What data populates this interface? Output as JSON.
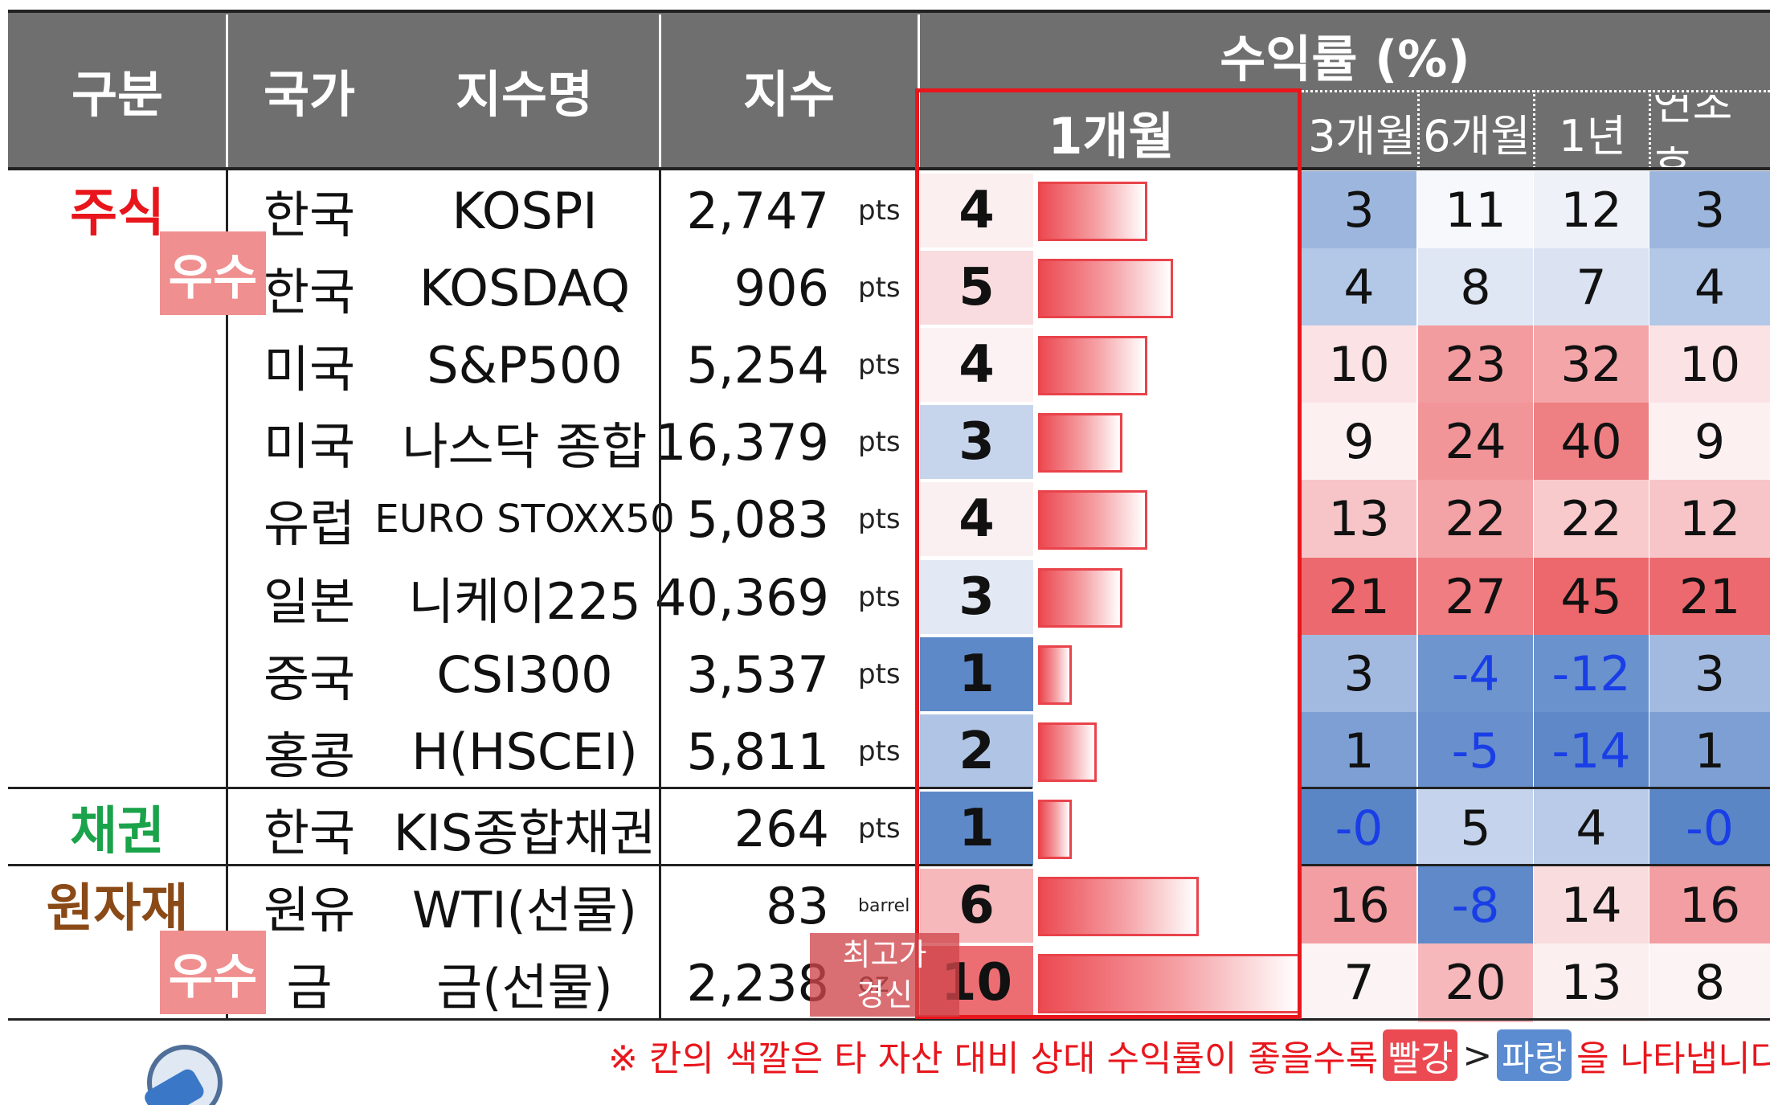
{
  "header": {
    "col_category": "구분",
    "col_country": "국가",
    "col_index_name": "지수명",
    "col_index": "지수",
    "col_returns": "수익률 (%)",
    "col_1m": "1개월",
    "col_3m": "3개월",
    "col_6m": "6개월",
    "col_1y": "1년",
    "col_ytd": "연초 후"
  },
  "categories": [
    {
      "label": "주식",
      "color": "#e8161c"
    },
    {
      "label": "채권",
      "color": "#1aa34a"
    },
    {
      "label": "원자재",
      "color": "#8a4a17"
    }
  ],
  "badges": {
    "stock": "우수",
    "commodity": "우수"
  },
  "rows": [
    {
      "country": "한국",
      "name": "KOSPI",
      "index": "2,747",
      "unit": "pts",
      "m1": "4",
      "m1_val": 4,
      "m1_bg": "#fbeff0",
      "m3": "3",
      "m3_bg": "#9db6de",
      "m6": "11",
      "m6_bg": "#f7f8fc",
      "y1": "12",
      "y1_bg": "#eef1f8",
      "ytd": "3",
      "ytd_bg": "#9db6de"
    },
    {
      "country": "한국",
      "name": "KOSDAQ",
      "index": "906",
      "unit": "pts",
      "m1": "5",
      "m1_val": 5,
      "m1_bg": "#f9dcdf",
      "m3": "4",
      "m3_bg": "#b3c7e6",
      "m6": "8",
      "m6_bg": "#dfe6f4",
      "y1": "7",
      "y1_bg": "#dbe3f3",
      "ytd": "4",
      "ytd_bg": "#b3c7e6"
    },
    {
      "country": "미국",
      "name": "S&P500",
      "index": "5,254",
      "unit": "pts",
      "m1": "4",
      "m1_val": 4,
      "m1_bg": "#fcf2f3",
      "m3": "10",
      "m3_bg": "#fbe3e5",
      "m6": "23",
      "m6_bg": "#f39c9f",
      "y1": "32",
      "y1_bg": "#f4a5a8",
      "ytd": "10",
      "ytd_bg": "#fbe3e5"
    },
    {
      "country": "미국",
      "name": "나스닥 종합",
      "index": "16,379",
      "unit": "pts",
      "m1": "3",
      "m1_val": 3,
      "m1_bg": "#c6d5ec",
      "m3": "9",
      "m3_bg": "#fcf0f1",
      "m6": "24",
      "m6_bg": "#f29599",
      "y1": "40",
      "y1_bg": "#ee7f83",
      "ytd": "9",
      "ytd_bg": "#fcf0f1"
    },
    {
      "country": "유럽",
      "name": "EURO STOXX50",
      "index": "5,083",
      "unit": "pts",
      "m1": "4",
      "m1_val": 4,
      "m1_bg": "#fbf0f1",
      "m3": "13",
      "m3_bg": "#f7c5c8",
      "m6": "22",
      "m6_bg": "#f3a2a5",
      "y1": "22",
      "y1_bg": "#f8cacc",
      "ytd": "12",
      "ytd_bg": "#f7c5c8"
    },
    {
      "country": "일본",
      "name": "니케이225",
      "index": "40,369",
      "unit": "pts",
      "m1": "3",
      "m1_val": 3,
      "m1_bg": "#e2e9f5",
      "m3": "21",
      "m3_bg": "#ec6a6f",
      "m6": "27",
      "m6_bg": "#ef7d81",
      "y1": "45",
      "y1_bg": "#ec686d",
      "ytd": "21",
      "ytd_bg": "#ec6a6f"
    },
    {
      "country": "중국",
      "name": "CSI300",
      "index": "3,537",
      "unit": "pts",
      "m1": "1",
      "m1_val": 1,
      "m1_bg": "#5e89c8",
      "m3": "3",
      "m3_bg": "#a2badf",
      "m6": "-4",
      "m6_bg": "#6f95cf",
      "y1": "-12",
      "y1_bg": "#6a92cd",
      "ytd": "3",
      "ytd_bg": "#a2badf"
    },
    {
      "country": "홍콩",
      "name": "H(HSCEI)",
      "index": "5,811",
      "unit": "pts",
      "m1": "2",
      "m1_val": 2,
      "m1_bg": "#b0c5e5",
      "m3": "1",
      "m3_bg": "#7d9fd3",
      "m6": "-5",
      "m6_bg": "#6990cc",
      "y1": "-14",
      "y1_bg": "#5e88c8",
      "ytd": "1",
      "ytd_bg": "#7d9fd3"
    },
    {
      "country": "한국",
      "name": "KIS종합채권",
      "index": "264",
      "unit": "pts",
      "m1": "1",
      "m1_val": 1,
      "m1_bg": "#5e89c8",
      "m3": "-0",
      "m3_bg": "#5a86c6",
      "m6": "5",
      "m6_bg": "#c5d4ec",
      "y1": "4",
      "y1_bg": "#b9cbe8",
      "ytd": "-0",
      "ytd_bg": "#5a86c6"
    },
    {
      "country": "원유",
      "name": "WTI(선물)",
      "index": "83",
      "unit": "barrel",
      "m1": "6",
      "m1_val": 6,
      "m1_bg": "#f6b8bb",
      "m3": "16",
      "m3_bg": "#f39ea2",
      "m6": "-8",
      "m6_bg": "#5f89c8",
      "y1": "14",
      "y1_bg": "#f9dcdd",
      "ytd": "16",
      "ytd_bg": "#f39ea2"
    },
    {
      "country": "금",
      "name": "금(선물)",
      "index": "2,238",
      "unit": "oz",
      "m1": "10",
      "m1_val": 10,
      "m1_bg": "#ec6e73",
      "m3": "7",
      "m3_bg": "#fbf3f4",
      "m6": "20",
      "m6_bg": "#f6b8bb",
      "y1": "13",
      "y1_bg": "#fbeff0",
      "ytd": "8",
      "ytd_bg": "#fbf3f4"
    }
  ],
  "highlight_badge": {
    "line1": "최고가",
    "line2": "경신"
  },
  "footnote": {
    "prefix": "※ 칸의 색깔은 타 자산 대비 상대 수익률이 좋을수록",
    "red_label": "빨강",
    "gt": ">",
    "blue_label": "파랑",
    "suffix": "을 나타냅니다."
  },
  "colors": {
    "header_bg": "#6f6f6f",
    "highlight_border": "#e8161c",
    "negative_text": "#1a3ee6"
  }
}
